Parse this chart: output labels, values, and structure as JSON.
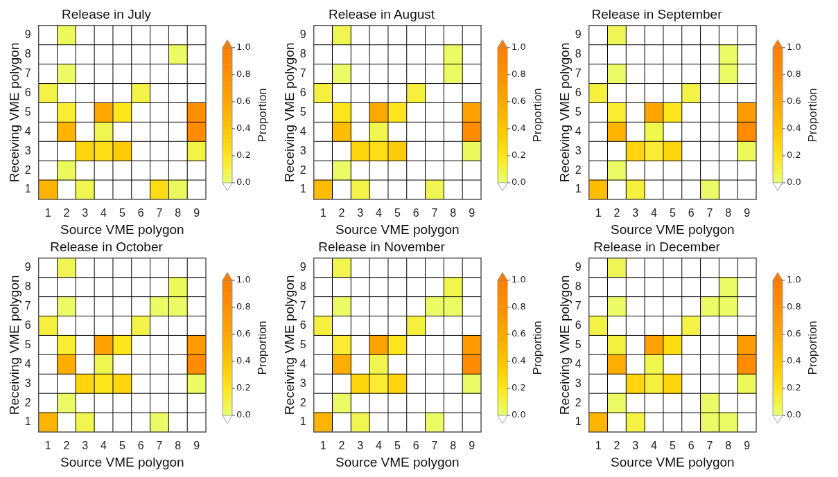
{
  "chart_data": [
    {
      "type": "heatmap",
      "title": "Release in July",
      "xlabel": "Source VME polygon",
      "ylabel": "Receiving VME polygon",
      "clabel": "Proportion",
      "categories": [
        "1",
        "2",
        "3",
        "4",
        "5",
        "6",
        "7",
        "8",
        "9"
      ],
      "y_categories": [
        "9",
        "8",
        "7",
        "6",
        "5",
        "4",
        "3",
        "2",
        "1"
      ],
      "clim": [
        0,
        1
      ],
      "cticks": [
        {
          "value": 0,
          "label": "0.0"
        },
        {
          "value": 0.2,
          "label": "0.2"
        },
        {
          "value": 0.4,
          "label": "0.4"
        },
        {
          "value": 0.6,
          "label": "0.6"
        },
        {
          "value": 0.8,
          "label": "0.8"
        },
        {
          "value": 1,
          "label": "1.0"
        }
      ],
      "cells": [
        [
          null,
          0.05,
          null,
          null,
          null,
          null,
          null,
          null,
          null
        ],
        [
          null,
          null,
          null,
          null,
          null,
          null,
          null,
          0.03,
          null
        ],
        [
          null,
          0.03,
          null,
          null,
          null,
          null,
          null,
          null,
          null
        ],
        [
          0.1,
          null,
          null,
          null,
          null,
          0.1,
          null,
          null,
          null
        ],
        [
          null,
          0.15,
          null,
          0.6,
          0.2,
          null,
          null,
          null,
          0.8
        ],
        [
          null,
          0.5,
          null,
          0.08,
          null,
          null,
          null,
          null,
          0.85
        ],
        [
          null,
          null,
          0.3,
          0.25,
          0.35,
          null,
          null,
          null,
          0.1
        ],
        [
          null,
          0.05,
          null,
          null,
          null,
          null,
          null,
          null,
          null
        ],
        [
          0.5,
          null,
          0.08,
          null,
          null,
          null,
          0.25,
          0.05,
          null
        ]
      ]
    },
    {
      "type": "heatmap",
      "title": "Release in August",
      "xlabel": "Source VME polygon",
      "ylabel": "Receiving VME polygon",
      "clabel": "Proportion",
      "categories": [
        "1",
        "2",
        "3",
        "4",
        "5",
        "6",
        "7",
        "8",
        "9"
      ],
      "y_categories": [
        "9",
        "8",
        "7",
        "6",
        "5",
        "4",
        "3",
        "2",
        "1"
      ],
      "clim": [
        0,
        1
      ],
      "cticks": [
        {
          "value": 0,
          "label": "0.0"
        },
        {
          "value": 0.2,
          "label": "0.2"
        },
        {
          "value": 0.4,
          "label": "0.4"
        },
        {
          "value": 0.6,
          "label": "0.6"
        },
        {
          "value": 0.8,
          "label": "0.8"
        },
        {
          "value": 1,
          "label": "1.0"
        }
      ],
      "cells": [
        [
          null,
          0.07,
          null,
          null,
          null,
          null,
          null,
          null,
          null
        ],
        [
          null,
          null,
          null,
          null,
          null,
          null,
          null,
          0.03,
          null
        ],
        [
          null,
          0.03,
          null,
          null,
          null,
          null,
          null,
          0.03,
          null
        ],
        [
          0.12,
          null,
          null,
          null,
          null,
          0.12,
          null,
          null,
          null
        ],
        [
          null,
          0.2,
          null,
          0.6,
          0.2,
          null,
          null,
          null,
          0.65
        ],
        [
          null,
          0.45,
          null,
          0.08,
          null,
          null,
          null,
          null,
          0.85
        ],
        [
          null,
          null,
          0.3,
          0.25,
          0.35,
          null,
          null,
          null,
          0.05
        ],
        [
          null,
          0.03,
          null,
          null,
          null,
          null,
          null,
          null,
          null
        ],
        [
          0.45,
          null,
          0.1,
          null,
          null,
          null,
          0.07,
          null,
          null
        ]
      ]
    },
    {
      "type": "heatmap",
      "title": "Release in September",
      "xlabel": "Source VME polygon",
      "ylabel": "Receiving VME polygon",
      "clabel": "Proportion",
      "categories": [
        "1",
        "2",
        "3",
        "4",
        "5",
        "6",
        "7",
        "8",
        "9"
      ],
      "y_categories": [
        "9",
        "8",
        "7",
        "6",
        "5",
        "4",
        "3",
        "2",
        "1"
      ],
      "clim": [
        0,
        1
      ],
      "cticks": [
        {
          "value": 0,
          "label": "0.0"
        },
        {
          "value": 0.2,
          "label": "0.2"
        },
        {
          "value": 0.4,
          "label": "0.4"
        },
        {
          "value": 0.6,
          "label": "0.6"
        },
        {
          "value": 0.8,
          "label": "0.8"
        },
        {
          "value": 1,
          "label": "1.0"
        }
      ],
      "cells": [
        [
          null,
          0.07,
          null,
          null,
          null,
          null,
          null,
          null,
          null
        ],
        [
          null,
          null,
          null,
          null,
          null,
          null,
          null,
          0.03,
          null
        ],
        [
          null,
          0.03,
          null,
          null,
          null,
          null,
          null,
          0.03,
          null
        ],
        [
          0.12,
          null,
          null,
          null,
          null,
          0.1,
          null,
          null,
          null
        ],
        [
          null,
          0.15,
          null,
          0.6,
          0.2,
          null,
          null,
          null,
          0.7
        ],
        [
          null,
          0.5,
          null,
          0.08,
          null,
          null,
          null,
          null,
          0.85
        ],
        [
          null,
          null,
          0.3,
          0.15,
          0.3,
          null,
          null,
          null,
          0.05
        ],
        [
          null,
          0.03,
          null,
          null,
          null,
          null,
          null,
          null,
          null
        ],
        [
          0.45,
          null,
          0.12,
          null,
          null,
          null,
          0.03,
          null,
          null
        ]
      ]
    },
    {
      "type": "heatmap",
      "title": "Release in October",
      "xlabel": "Source VME polygon",
      "ylabel": "Receiving VME polygon",
      "clabel": "Proportion",
      "categories": [
        "1",
        "2",
        "3",
        "4",
        "5",
        "6",
        "7",
        "8",
        "9"
      ],
      "y_categories": [
        "9",
        "8",
        "7",
        "6",
        "5",
        "4",
        "3",
        "2",
        "1"
      ],
      "clim": [
        0,
        1
      ],
      "cticks": [
        {
          "value": 0,
          "label": "0.0"
        },
        {
          "value": 0.2,
          "label": "0.2"
        },
        {
          "value": 0.4,
          "label": "0.4"
        },
        {
          "value": 0.6,
          "label": "0.6"
        },
        {
          "value": 0.8,
          "label": "0.8"
        },
        {
          "value": 1,
          "label": "1.0"
        }
      ],
      "cells": [
        [
          null,
          0.07,
          null,
          null,
          null,
          null,
          null,
          null,
          null
        ],
        [
          null,
          null,
          null,
          null,
          null,
          null,
          null,
          0.05,
          null
        ],
        [
          null,
          0.03,
          null,
          null,
          null,
          null,
          0.03,
          0.03,
          null
        ],
        [
          0.12,
          null,
          null,
          null,
          null,
          0.1,
          null,
          null,
          null
        ],
        [
          null,
          0.15,
          null,
          0.65,
          0.2,
          null,
          null,
          null,
          0.7
        ],
        [
          null,
          0.55,
          null,
          0.08,
          null,
          null,
          null,
          null,
          0.85
        ],
        [
          null,
          null,
          0.3,
          0.2,
          0.3,
          null,
          null,
          null,
          0.03
        ],
        [
          null,
          0.03,
          null,
          null,
          null,
          null,
          null,
          null,
          null
        ],
        [
          0.5,
          null,
          0.08,
          null,
          null,
          null,
          0.03,
          null,
          null
        ]
      ]
    },
    {
      "type": "heatmap",
      "title": "Release in November",
      "xlabel": "Source VME polygon",
      "ylabel": "Receiving VME polygon",
      "clabel": "Proportion",
      "categories": [
        "1",
        "2",
        "3",
        "4",
        "5",
        "6",
        "7",
        "8",
        "9"
      ],
      "y_categories": [
        "9",
        "8",
        "7",
        "6",
        "5",
        "4",
        "3",
        "2",
        "1"
      ],
      "clim": [
        0,
        1
      ],
      "cticks": [
        {
          "value": 0,
          "label": "0.0"
        },
        {
          "value": 0.2,
          "label": "0.2"
        },
        {
          "value": 0.4,
          "label": "0.4"
        },
        {
          "value": 0.6,
          "label": "0.6"
        },
        {
          "value": 0.8,
          "label": "0.8"
        },
        {
          "value": 1,
          "label": "1.0"
        }
      ],
      "cells": [
        [
          null,
          0.08,
          null,
          null,
          null,
          null,
          null,
          null,
          null
        ],
        [
          null,
          null,
          null,
          null,
          null,
          null,
          null,
          0.08,
          null
        ],
        [
          null,
          0.03,
          null,
          null,
          null,
          null,
          0.03,
          0.03,
          null
        ],
        [
          0.12,
          null,
          null,
          null,
          null,
          0.12,
          null,
          null,
          null
        ],
        [
          null,
          0.15,
          null,
          0.65,
          0.2,
          null,
          null,
          null,
          0.7
        ],
        [
          null,
          0.55,
          null,
          0.08,
          null,
          null,
          null,
          null,
          0.85
        ],
        [
          null,
          null,
          0.3,
          0.15,
          0.3,
          null,
          null,
          null,
          0.03
        ],
        [
          null,
          0.03,
          null,
          null,
          null,
          null,
          null,
          null,
          null
        ],
        [
          0.5,
          null,
          0.08,
          null,
          null,
          null,
          0.03,
          null,
          null
        ]
      ]
    },
    {
      "type": "heatmap",
      "title": "Release in December",
      "xlabel": "Source VME polygon",
      "ylabel": "Receiving VME polygon",
      "clabel": "Proportion",
      "categories": [
        "1",
        "2",
        "3",
        "4",
        "5",
        "6",
        "7",
        "8",
        "9"
      ],
      "y_categories": [
        "9",
        "8",
        "7",
        "6",
        "5",
        "4",
        "3",
        "2",
        "1"
      ],
      "clim": [
        0,
        1
      ],
      "cticks": [
        {
          "value": 0,
          "label": "0.0"
        },
        {
          "value": 0.2,
          "label": "0.2"
        },
        {
          "value": 0.4,
          "label": "0.4"
        },
        {
          "value": 0.6,
          "label": "0.6"
        },
        {
          "value": 0.8,
          "label": "0.8"
        },
        {
          "value": 1,
          "label": "1.0"
        }
      ],
      "cells": [
        [
          null,
          0.07,
          null,
          null,
          null,
          null,
          null,
          null,
          null
        ],
        [
          null,
          null,
          null,
          null,
          null,
          null,
          null,
          0.03,
          null
        ],
        [
          null,
          0.03,
          null,
          null,
          null,
          null,
          0.03,
          0.03,
          null
        ],
        [
          0.1,
          null,
          null,
          null,
          null,
          0.1,
          null,
          null,
          null
        ],
        [
          null,
          0.12,
          null,
          0.65,
          0.25,
          null,
          null,
          null,
          0.7
        ],
        [
          null,
          0.55,
          null,
          0.08,
          null,
          null,
          null,
          null,
          0.85
        ],
        [
          null,
          null,
          0.3,
          0.12,
          0.3,
          null,
          null,
          null,
          0.05
        ],
        [
          null,
          0.03,
          null,
          null,
          null,
          null,
          0.03,
          null,
          null
        ],
        [
          0.5,
          null,
          0.1,
          null,
          null,
          null,
          0.03,
          0.03,
          null
        ]
      ]
    }
  ]
}
